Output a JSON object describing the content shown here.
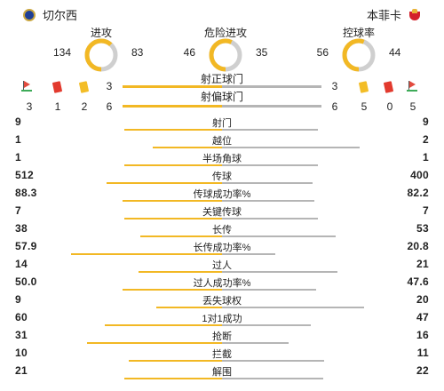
{
  "header": {
    "home_team": "切尔西",
    "away_team": "本菲卡",
    "home_badge_icon": "chelsea-badge-icon",
    "away_badge_icon": "benfica-badge-icon"
  },
  "colors": {
    "home": "#f2b824",
    "away": "#b5b5b5",
    "red_card": "#e23a2e",
    "yellow_card": "#f3bd27"
  },
  "donuts": [
    {
      "title": "进攻",
      "home": "134",
      "away": "83"
    },
    {
      "title": "危险进攻",
      "home": "46",
      "away": "35"
    },
    {
      "title": "控球率",
      "home": "56",
      "away": "44"
    }
  ],
  "shots_on": {
    "title": "射正球门",
    "home": "3",
    "away": "3"
  },
  "shots_off": {
    "title": "射偏球门",
    "home": "6",
    "away": "6"
  },
  "home_events": {
    "corners": "3",
    "red_cards": "1",
    "yellow_cards": "2"
  },
  "away_events": {
    "yellow_cards": "5",
    "red_cards": "0",
    "corners": "5"
  },
  "stats": [
    {
      "label": "射门",
      "home": "9",
      "away": "9"
    },
    {
      "label": "越位",
      "home": "1",
      "away": "2"
    },
    {
      "label": "半场角球",
      "home": "1",
      "away": "1"
    },
    {
      "label": "传球",
      "home": "512",
      "away": "400"
    },
    {
      "label": "传球成功率%",
      "home": "88.3",
      "away": "82.2"
    },
    {
      "label": "关键传球",
      "home": "7",
      "away": "7"
    },
    {
      "label": "长传",
      "home": "38",
      "away": "53"
    },
    {
      "label": "长传成功率%",
      "home": "57.9",
      "away": "20.8"
    },
    {
      "label": "过人",
      "home": "14",
      "away": "21"
    },
    {
      "label": "过人成功率%",
      "home": "50.0",
      "away": "47.6"
    },
    {
      "label": "丢失球权",
      "home": "9",
      "away": "20"
    },
    {
      "label": "1对1成功",
      "home": "60",
      "away": "47"
    },
    {
      "label": "抢断",
      "home": "31",
      "away": "16"
    },
    {
      "label": "拦截",
      "home": "10",
      "away": "11"
    },
    {
      "label": "解围",
      "home": "21",
      "away": "22"
    }
  ]
}
